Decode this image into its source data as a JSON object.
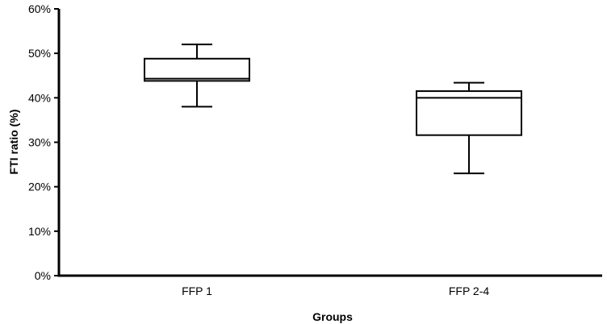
{
  "chart_data": {
    "type": "box",
    "title": "",
    "xlabel": "Groups",
    "ylabel": "FTI ratio (%)",
    "ylim": [
      0,
      60
    ],
    "yticks": [
      0,
      10,
      20,
      30,
      40,
      50,
      60
    ],
    "ytick_labels": [
      "0%",
      "10%",
      "20%",
      "30%",
      "40%",
      "50%",
      "60%"
    ],
    "categories": [
      "FFP 1",
      "FFP 2-4"
    ],
    "boxes": [
      {
        "category": "FFP 1",
        "min": 38,
        "q1": 43.8,
        "median": 44.3,
        "q3": 48.8,
        "max": 52
      },
      {
        "category": "FFP 2-4",
        "min": 23,
        "q1": 31.6,
        "median": 40,
        "q3": 41.5,
        "max": 43.4
      }
    ],
    "grid": false,
    "legend": "none"
  }
}
